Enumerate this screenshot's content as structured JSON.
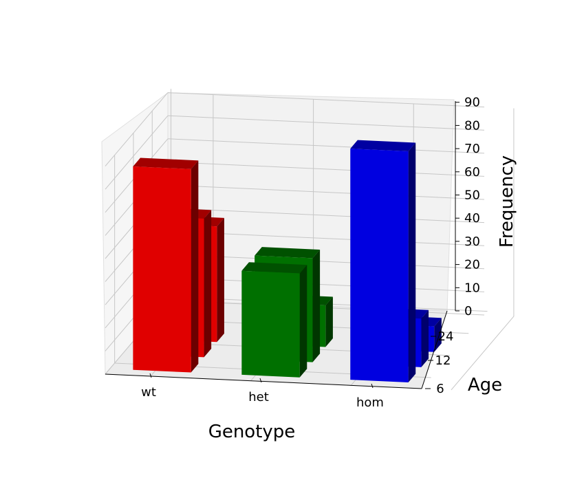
{
  "chart_data": {
    "type": "bar3d",
    "xlabel": "Genotype",
    "ylabel": "Age",
    "zlabel": "Frequency",
    "genotypes": [
      "wt",
      "het",
      "hom"
    ],
    "ages": [
      "6",
      "12",
      "24"
    ],
    "zticks": [
      "0",
      "10",
      "20",
      "30",
      "40",
      "50",
      "60",
      "70",
      "80",
      "90"
    ],
    "zlim": [
      0,
      90
    ],
    "series": [
      {
        "genotype": "wt",
        "color": "#e00000",
        "values": [
          88,
          60,
          50
        ]
      },
      {
        "genotype": "het",
        "color": "#007000",
        "values": [
          45,
          45,
          18
        ]
      },
      {
        "genotype": "hom",
        "color": "#0000e0",
        "values": [
          100,
          21,
          11
        ]
      }
    ],
    "grid": true
  }
}
